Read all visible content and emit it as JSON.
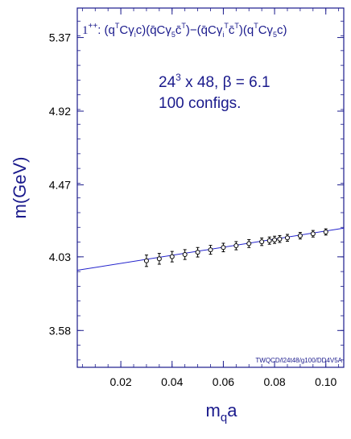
{
  "chart_data": {
    "type": "scatter",
    "xlabel": "m",
    "xlabel_sub": "q",
    "xlabel_tail": "a",
    "ylabel": "m(GeV)",
    "xlim": [
      0.003,
      0.107
    ],
    "ylim": [
      3.355,
      5.55
    ],
    "xticks": [
      0.02,
      0.04,
      0.06,
      0.08,
      0.1
    ],
    "xtick_labels": [
      "0.02",
      "0.04",
      "0.06",
      "0.08",
      "0.10"
    ],
    "yticks": [
      3.58,
      4.03,
      4.47,
      4.92,
      5.37
    ],
    "ytick_labels": [
      "3.58",
      "4.03",
      "4.47",
      "4.92",
      "5.37"
    ],
    "title_parts": [
      "1",
      "++",
      ":  (q",
      "T",
      "Cγ",
      "i",
      "c)(q̄Cγ",
      "5",
      "c̄",
      "T",
      ")−(q̄Cγ",
      "i",
      "T",
      "c̄",
      "T",
      ")(q",
      "T",
      "Cγ",
      "5",
      "c)"
    ],
    "annotation_line1_a": "24",
    "annotation_line1_sup": "3",
    "annotation_line1_b": " x 48, β = 6.1",
    "annotation_line2": "100 configs.",
    "watermark": "TWQCD/l24t48/g100/DD4V5A",
    "series": [
      {
        "x": [
          0.03,
          0.035,
          0.04,
          0.045,
          0.05,
          0.055,
          0.06,
          0.065,
          0.07,
          0.075,
          0.078,
          0.08,
          0.082,
          0.085,
          0.09,
          0.095,
          0.1
        ],
        "y": [
          4.006,
          4.018,
          4.031,
          4.044,
          4.058,
          4.073,
          4.087,
          4.098,
          4.111,
          4.122,
          4.129,
          4.134,
          4.139,
          4.146,
          4.159,
          4.171,
          4.182
        ],
        "err": [
          0.035,
          0.033,
          0.032,
          0.03,
          0.029,
          0.027,
          0.026,
          0.025,
          0.024,
          0.023,
          0.022,
          0.022,
          0.021,
          0.021,
          0.02,
          0.02,
          0.019
        ]
      }
    ],
    "fit_line": {
      "x": [
        0.003,
        0.107
      ],
      "y": [
        3.948,
        4.205
      ]
    },
    "colors": {
      "frame": "#1a1a8c",
      "fit": "#2222cc",
      "points": "#000000"
    }
  }
}
